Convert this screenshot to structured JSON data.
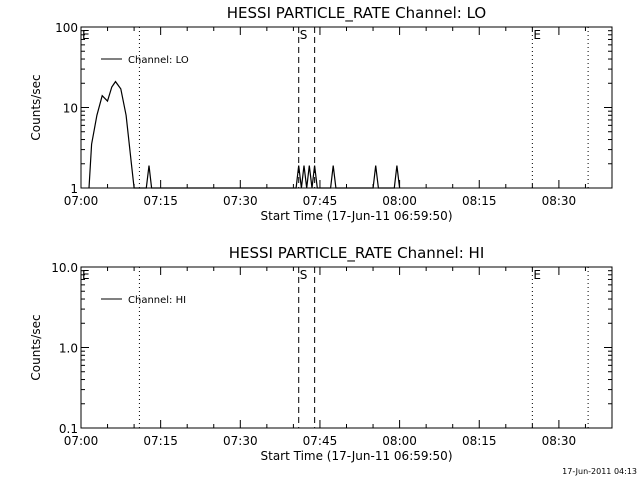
{
  "chart_data": [
    {
      "type": "line",
      "title": "HESSI PARTICLE_RATE Channel: LO",
      "xlabel": "Start Time (17-Jun-11 06:59:50)",
      "ylabel": "Counts/sec",
      "x_axis": "time",
      "xlim": [
        "07:00",
        "08:40"
      ],
      "x_ticks": [
        "07:00",
        "07:15",
        "07:30",
        "07:45",
        "08:00",
        "08:15",
        "08:30"
      ],
      "y_scale": "log",
      "ylim": [
        1,
        100
      ],
      "y_ticks": [
        "1",
        "10",
        "100"
      ],
      "grid": false,
      "legend": {
        "placement": "top-left",
        "entries": [
          "Channel: LO"
        ]
      },
      "series": [
        {
          "name": "Channel: LO",
          "color": "#000000",
          "points": [
            [
              "07:01.5",
              1
            ],
            [
              "07:02.0",
              3.5
            ],
            [
              "07:03.0",
              8
            ],
            [
              "07:04.0",
              14
            ],
            [
              "07:05.0",
              12
            ],
            [
              "07:05.8",
              18
            ],
            [
              "07:06.5",
              21
            ],
            [
              "07:07.5",
              17
            ],
            [
              "07:08.5",
              8
            ],
            [
              "07:09.5",
              2
            ],
            [
              "07:10.0",
              1
            ],
            [
              "07:12.3",
              1
            ],
            [
              "07:12.8",
              1.9
            ],
            [
              "07:13.3",
              1
            ],
            [
              "07:40.5",
              1
            ],
            [
              "07:41.0",
              1.9
            ],
            [
              "07:41.5",
              1
            ],
            [
              "07:42.0",
              1.9
            ],
            [
              "07:42.5",
              1
            ],
            [
              "07:43.0",
              1.9
            ],
            [
              "07:43.5",
              1
            ],
            [
              "07:44.0",
              1.9
            ],
            [
              "07:44.5",
              1
            ],
            [
              "07:47.0",
              1
            ],
            [
              "07:47.5",
              1.9
            ],
            [
              "07:48.0",
              1
            ],
            [
              "07:55.0",
              1
            ],
            [
              "07:55.5",
              1.9
            ],
            [
              "07:56.0",
              1
            ],
            [
              "07:59.0",
              1
            ],
            [
              "07:59.5",
              1.9
            ],
            [
              "08:00.0",
              1
            ]
          ]
        }
      ],
      "markers": [
        {
          "label": "E",
          "time": "07:00",
          "style": "dotted"
        },
        {
          "label": "",
          "time": "07:11",
          "style": "dotted"
        },
        {
          "label": "S",
          "time": "07:41",
          "style": "dashed"
        },
        {
          "label": "",
          "time": "07:44",
          "style": "dashed"
        },
        {
          "label": "E",
          "time": "08:25",
          "style": "dotted"
        },
        {
          "label": "",
          "time": "08:35.5",
          "style": "dotted"
        }
      ]
    },
    {
      "type": "line",
      "title": "HESSI PARTICLE_RATE Channel: HI",
      "xlabel": "Start Time (17-Jun-11 06:59:50)",
      "ylabel": "Counts/sec",
      "x_axis": "time",
      "xlim": [
        "07:00",
        "08:40"
      ],
      "x_ticks": [
        "07:00",
        "07:15",
        "07:30",
        "07:45",
        "08:00",
        "08:15",
        "08:30"
      ],
      "y_scale": "log",
      "ylim": [
        0.1,
        10
      ],
      "y_ticks": [
        "0.1",
        "1.0",
        "10.0"
      ],
      "grid": false,
      "legend": {
        "placement": "top-left",
        "entries": [
          "Channel: HI"
        ]
      },
      "series": [
        {
          "name": "Channel: HI",
          "color": "#000000",
          "points": []
        }
      ],
      "markers": [
        {
          "label": "E",
          "time": "07:00",
          "style": "dotted"
        },
        {
          "label": "",
          "time": "07:11",
          "style": "dotted"
        },
        {
          "label": "S",
          "time": "07:41",
          "style": "dashed"
        },
        {
          "label": "",
          "time": "07:44",
          "style": "dashed"
        },
        {
          "label": "E",
          "time": "08:25",
          "style": "dotted"
        },
        {
          "label": "",
          "time": "08:35.5",
          "style": "dotted"
        }
      ]
    }
  ],
  "footer": {
    "timestamp": "17-Jun-2011 04:13"
  }
}
